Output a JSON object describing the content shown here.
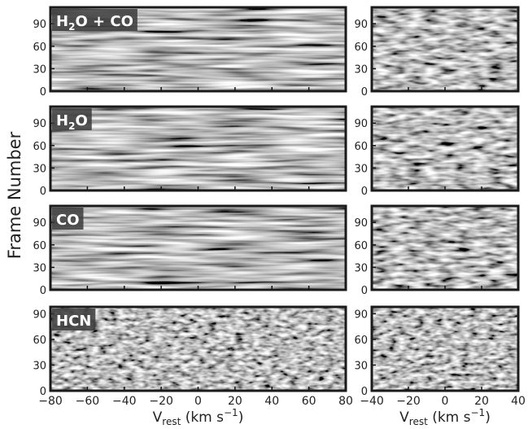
{
  "chart_data": [
    {
      "type": "heatmap",
      "title": {
        "text": "H",
        "sub": "2",
        "after": "O + CO"
      },
      "ylabel": "Frame Number",
      "xlim": [
        -80,
        80
      ],
      "xticks": [
        {
          "value": -80,
          "label": "−80"
        },
        {
          "value": -60,
          "label": "−60"
        },
        {
          "value": -40,
          "label": "−40"
        },
        {
          "value": -20,
          "label": "−20"
        },
        0,
        20,
        40,
        60,
        80
      ],
      "ylim": [
        0,
        112
      ],
      "yticks": [
        0,
        30,
        60,
        90
      ]
    },
    {
      "type": "heatmap",
      "xlim": [
        -40,
        40
      ],
      "xticks": [
        {
          "value": -40,
          "label": "−40"
        },
        {
          "value": -20,
          "label": "−20"
        },
        0,
        20,
        40
      ],
      "ylim": [
        0,
        112
      ],
      "yticks": [
        0,
        30,
        60,
        90
      ]
    },
    {
      "type": "heatmap",
      "title": {
        "text": "H",
        "sub": "2",
        "after": "O"
      },
      "xlim": [
        -80,
        80
      ],
      "xticks": [
        {
          "value": -80,
          "label": "−80"
        },
        {
          "value": -60,
          "label": "−60"
        },
        {
          "value": -40,
          "label": "−40"
        },
        {
          "value": -20,
          "label": "−20"
        },
        0,
        20,
        40,
        60,
        80
      ],
      "ylim": [
        0,
        112
      ],
      "yticks": [
        0,
        30,
        60,
        90
      ]
    },
    {
      "type": "heatmap",
      "xlim": [
        -40,
        40
      ],
      "xticks": [
        {
          "value": -40,
          "label": "−40"
        },
        {
          "value": -20,
          "label": "−20"
        },
        0,
        20,
        40
      ],
      "ylim": [
        0,
        112
      ],
      "yticks": [
        0,
        30,
        60,
        90
      ]
    },
    {
      "type": "heatmap",
      "title": {
        "text": "CO"
      },
      "xlim": [
        -80,
        80
      ],
      "xticks": [
        {
          "value": -80,
          "label": "−80"
        },
        {
          "value": -60,
          "label": "−60"
        },
        {
          "value": -40,
          "label": "−40"
        },
        {
          "value": -20,
          "label": "−20"
        },
        0,
        20,
        40,
        60,
        80
      ],
      "ylim": [
        0,
        112
      ],
      "yticks": [
        0,
        30,
        60,
        90
      ]
    },
    {
      "type": "heatmap",
      "xlim": [
        -40,
        40
      ],
      "xticks": [
        {
          "value": -40,
          "label": "−40"
        },
        {
          "value": -20,
          "label": "−20"
        },
        0,
        20,
        40
      ],
      "ylim": [
        0,
        112
      ],
      "yticks": [
        0,
        30,
        60,
        90
      ]
    },
    {
      "type": "heatmap",
      "title": {
        "text": "HCN"
      },
      "xlabel": {
        "text": "V",
        "sub": "rest",
        "after": " (km s",
        "sup": "−1",
        "end": ")"
      },
      "xlim": [
        -80,
        80
      ],
      "xticks": [
        {
          "value": -80,
          "label": "−80"
        },
        {
          "value": -60,
          "label": "−60"
        },
        {
          "value": -40,
          "label": "−40"
        },
        {
          "value": -20,
          "label": "−20"
        },
        0,
        20,
        40,
        60,
        80
      ],
      "ylim": [
        0,
        98
      ],
      "yticks": [
        0,
        30,
        60,
        90
      ]
    },
    {
      "type": "heatmap",
      "xlabel": {
        "text": "V",
        "sub": "rest",
        "after": " (km s",
        "sup": "−1",
        "end": ")"
      },
      "xlim": [
        -40,
        40
      ],
      "xticks": [
        {
          "value": -40,
          "label": "−40"
        },
        {
          "value": -20,
          "label": "−20"
        },
        0,
        20,
        40
      ],
      "ylim": [
        0,
        98
      ],
      "yticks": [
        0,
        30,
        60,
        90
      ]
    }
  ]
}
